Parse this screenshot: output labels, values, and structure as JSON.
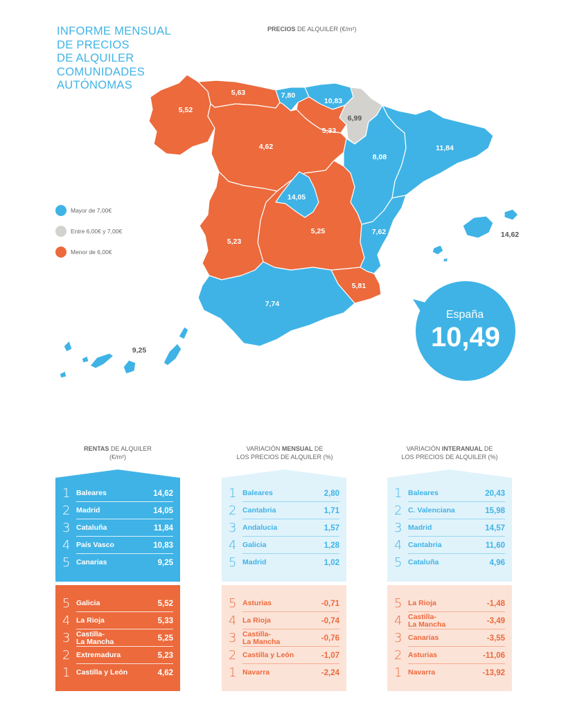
{
  "title_lines": [
    "INFORME MENSUAL",
    "DE PRECIOS",
    "DE ALQUILER",
    "COMUNIDADES",
    "AUTÓNOMAS"
  ],
  "map_heading": {
    "bold": "PRECIOS",
    "rest": " DE ALQUILER (€/m²)"
  },
  "colors": {
    "blue": "#3fb3e6",
    "grey": "#d4d2cf",
    "orange": "#ec6a3c",
    "light_blue": "#e0f3fb",
    "light_orange": "#fce3d8"
  },
  "legend": [
    {
      "label": "Mayor de 7,00€",
      "color": "#3fb3e6"
    },
    {
      "label": "Entre 6,00€ y 7,00€",
      "color": "#d4d2cf"
    },
    {
      "label": "Menor de 6,00€",
      "color": "#ec6a3c"
    }
  ],
  "regions": [
    {
      "name": "Galicia",
      "value": "5,52",
      "color": "#ec6a3c"
    },
    {
      "name": "Asturias",
      "value": "5,63",
      "color": "#ec6a3c"
    },
    {
      "name": "Cantabria",
      "value": "7,80",
      "color": "#3fb3e6"
    },
    {
      "name": "País Vasco",
      "value": "10,83",
      "color": "#3fb3e6"
    },
    {
      "name": "Navarra",
      "value": "6,99",
      "color": "#d4d2cf"
    },
    {
      "name": "La Rioja",
      "value": "5,33",
      "color": "#ec6a3c"
    },
    {
      "name": "Castilla y León",
      "value": "4,62",
      "color": "#ec6a3c"
    },
    {
      "name": "Aragón",
      "value": "8,08",
      "color": "#3fb3e6"
    },
    {
      "name": "Cataluña",
      "value": "11,84",
      "color": "#3fb3e6"
    },
    {
      "name": "Madrid",
      "value": "14,05",
      "color": "#3fb3e6"
    },
    {
      "name": "Castilla-La Mancha",
      "value": "5,25",
      "color": "#ec6a3c"
    },
    {
      "name": "Extremadura",
      "value": "5,23",
      "color": "#ec6a3c"
    },
    {
      "name": "C. Valenciana",
      "value": "7,62",
      "color": "#3fb3e6"
    },
    {
      "name": "Murcia",
      "value": "5,81",
      "color": "#ec6a3c"
    },
    {
      "name": "Andalucía",
      "value": "7,74",
      "color": "#3fb3e6"
    },
    {
      "name": "Baleares",
      "value": "14,62",
      "color": "#3fb3e6"
    },
    {
      "name": "Canarias",
      "value": "9,25",
      "color": "#3fb3e6"
    }
  ],
  "espana": {
    "label": "España",
    "value": "10,49"
  },
  "columns": [
    {
      "heading_bold": "RENTAS",
      "heading_rest": " DE ALQUILER",
      "heading_line2": "(€/m²)",
      "bold_first": true,
      "top": [
        {
          "rank": "1",
          "name": "Baleares",
          "value": "14,62"
        },
        {
          "rank": "2",
          "name": "Madrid",
          "value": "14,05"
        },
        {
          "rank": "3",
          "name": "Cataluña",
          "value": "11,84"
        },
        {
          "rank": "4",
          "name": "País Vasco",
          "value": "10,83"
        },
        {
          "rank": "5",
          "name": "Canarias",
          "value": "9,25"
        }
      ],
      "bottom": [
        {
          "rank": "5",
          "name": "Galicia",
          "value": "5,52"
        },
        {
          "rank": "4",
          "name": "La Rioja",
          "value": "5,33"
        },
        {
          "rank": "3",
          "name": "Castilla-\nLa Mancha",
          "value": "5,25"
        },
        {
          "rank": "2",
          "name": "Extremadura",
          "value": "5,23"
        },
        {
          "rank": "1",
          "name": "Castilla y León",
          "value": "4,62"
        }
      ]
    },
    {
      "heading_pre": "VARIACIÓN ",
      "heading_bold": "MENSUAL",
      "heading_rest": " DE",
      "heading_line2": "LOS PRECIOS DE ALQUILER (%)",
      "bold_first": false,
      "top": [
        {
          "rank": "1",
          "name": "Baleares",
          "value": "2,80"
        },
        {
          "rank": "2",
          "name": "Cantabria",
          "value": "1,71"
        },
        {
          "rank": "3",
          "name": "Andalucia",
          "value": "1,57"
        },
        {
          "rank": "4",
          "name": "Galicia",
          "value": "1,28"
        },
        {
          "rank": "5",
          "name": "Madrid",
          "value": "1,02"
        }
      ],
      "bottom": [
        {
          "rank": "5",
          "name": "Asturias",
          "value": "-0,71"
        },
        {
          "rank": "4",
          "name": "La Rioja",
          "value": "-0,74"
        },
        {
          "rank": "3",
          "name": "Castilla-\nLa Mancha",
          "value": "-0,76"
        },
        {
          "rank": "2",
          "name": "Castilla y León",
          "value": "-1,07"
        },
        {
          "rank": "1",
          "name": "Navarra",
          "value": "-2,24"
        }
      ]
    },
    {
      "heading_pre": "VARIACIÓN ",
      "heading_bold": "INTERANUAL",
      "heading_rest": " DE",
      "heading_line2": "LOS PRECIOS DE ALQUILER (%)",
      "bold_first": false,
      "top": [
        {
          "rank": "1",
          "name": "Baleares",
          "value": "20,43"
        },
        {
          "rank": "2",
          "name": "C. Valenciana",
          "value": "15,98"
        },
        {
          "rank": "3",
          "name": "Madrid",
          "value": "14,57"
        },
        {
          "rank": "4",
          "name": "Cantabria",
          "value": "11,60"
        },
        {
          "rank": "5",
          "name": "Cataluña",
          "value": "4,96"
        }
      ],
      "bottom": [
        {
          "rank": "5",
          "name": "La Rioja",
          "value": "-1,48"
        },
        {
          "rank": "4",
          "name": "Castilla-\nLa Mancha",
          "value": "-3,49"
        },
        {
          "rank": "3",
          "name": "Canarias",
          "value": "-3,55"
        },
        {
          "rank": "2",
          "name": "Asturias",
          "value": "-11,06"
        },
        {
          "rank": "1",
          "name": "Navarra",
          "value": "-13,92"
        }
      ]
    }
  ]
}
